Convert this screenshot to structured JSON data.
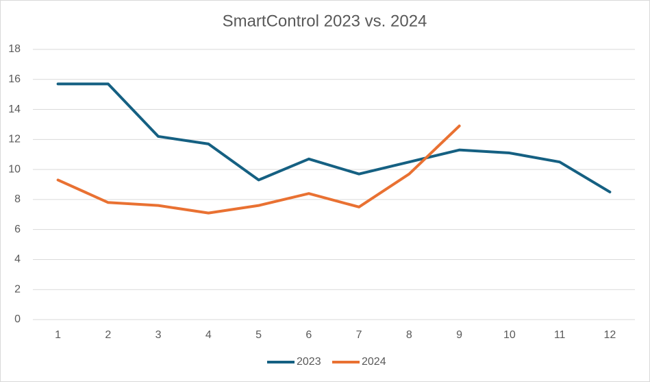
{
  "chart_data": {
    "type": "line",
    "title": "SmartControl 2023 vs. 2024",
    "categories": [
      1,
      2,
      3,
      4,
      5,
      6,
      7,
      8,
      9,
      10,
      11,
      12
    ],
    "series": [
      {
        "name": "2023",
        "color": "#156082",
        "values": [
          15.7,
          15.7,
          12.2,
          11.7,
          9.3,
          10.7,
          9.7,
          10.5,
          11.3,
          11.1,
          10.5,
          8.5
        ]
      },
      {
        "name": "2024",
        "color": "#e97132",
        "values": [
          9.3,
          7.8,
          7.6,
          7.1,
          7.6,
          8.4,
          7.5,
          9.7,
          12.9,
          null,
          null,
          null
        ]
      }
    ],
    "ylim": [
      0,
      18
    ],
    "yticks": [
      0,
      2,
      4,
      6,
      8,
      10,
      12,
      14,
      16,
      18
    ],
    "grid": true,
    "legend": "bottom"
  }
}
